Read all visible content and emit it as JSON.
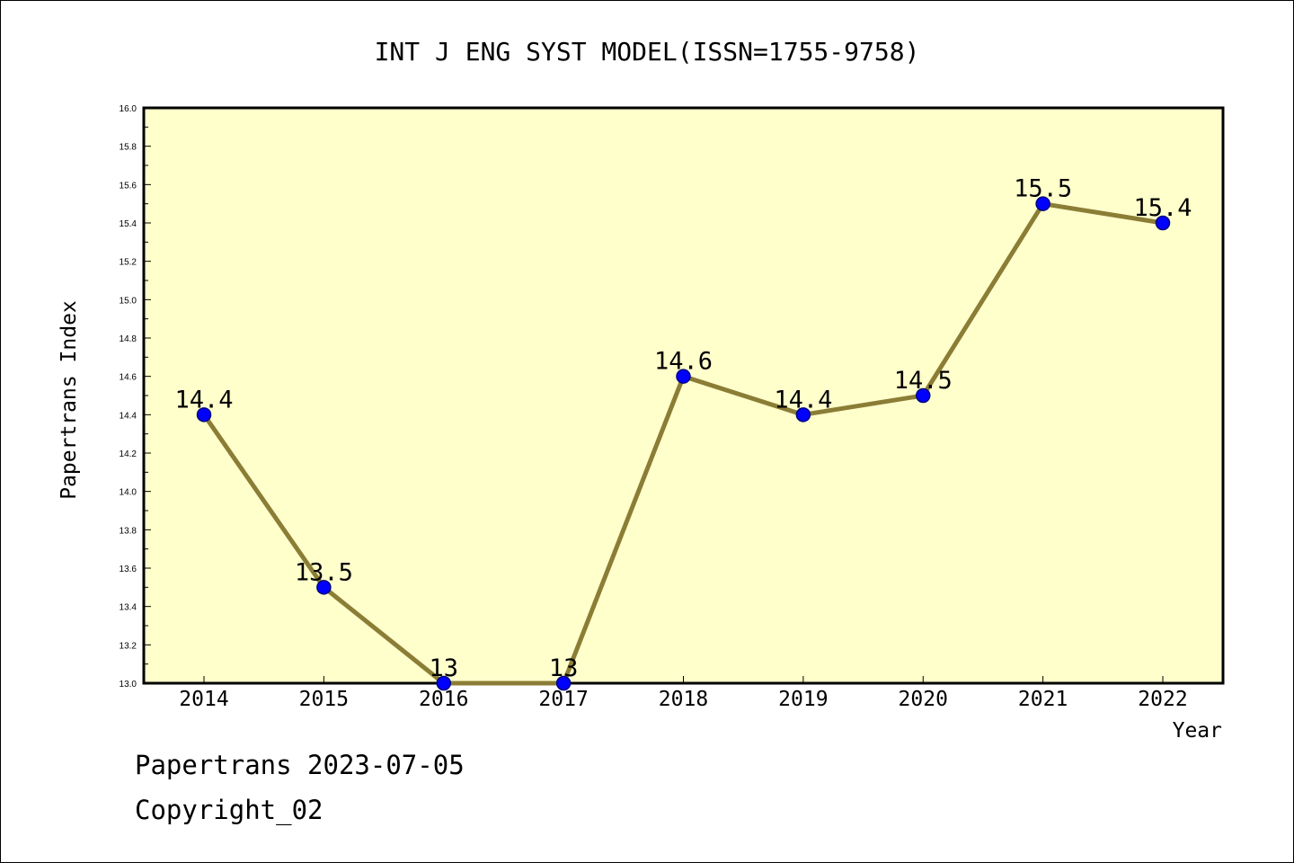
{
  "chart_data": {
    "type": "line",
    "title": "INT J ENG SYST MODEL(ISSN=1755-9758)",
    "xlabel": "Year",
    "ylabel": "Papertrans Index",
    "categories": [
      "2014",
      "2015",
      "2016",
      "2017",
      "2018",
      "2019",
      "2020",
      "2021",
      "2022"
    ],
    "series": [
      {
        "values": [
          14.4,
          13.5,
          13.0,
          13.0,
          14.6,
          14.4,
          14.5,
          15.5,
          15.4
        ],
        "data_labels": [
          "14.4",
          "13.5",
          "13",
          "13",
          "14.6",
          "14.4",
          "14.5",
          "15.5",
          "15.4"
        ]
      }
    ],
    "ylim": [
      13.0,
      16.0
    ],
    "y_ticks": [
      "13.0",
      "13.2",
      "13.4",
      "13.6",
      "13.8",
      "14.0",
      "14.2",
      "14.4",
      "14.6",
      "14.8",
      "15.0",
      "15.2",
      "15.4",
      "15.6",
      "15.8",
      "16.0"
    ],
    "grid": false,
    "legend": "none",
    "colors": {
      "plot_background": "#ffffcc",
      "line": "#8b7d35",
      "marker": "#0000ff",
      "marker_edge": "#000080"
    }
  },
  "footer": {
    "date_text": "Papertrans 2023-07-05",
    "copyright_text": "Copyright_02"
  }
}
